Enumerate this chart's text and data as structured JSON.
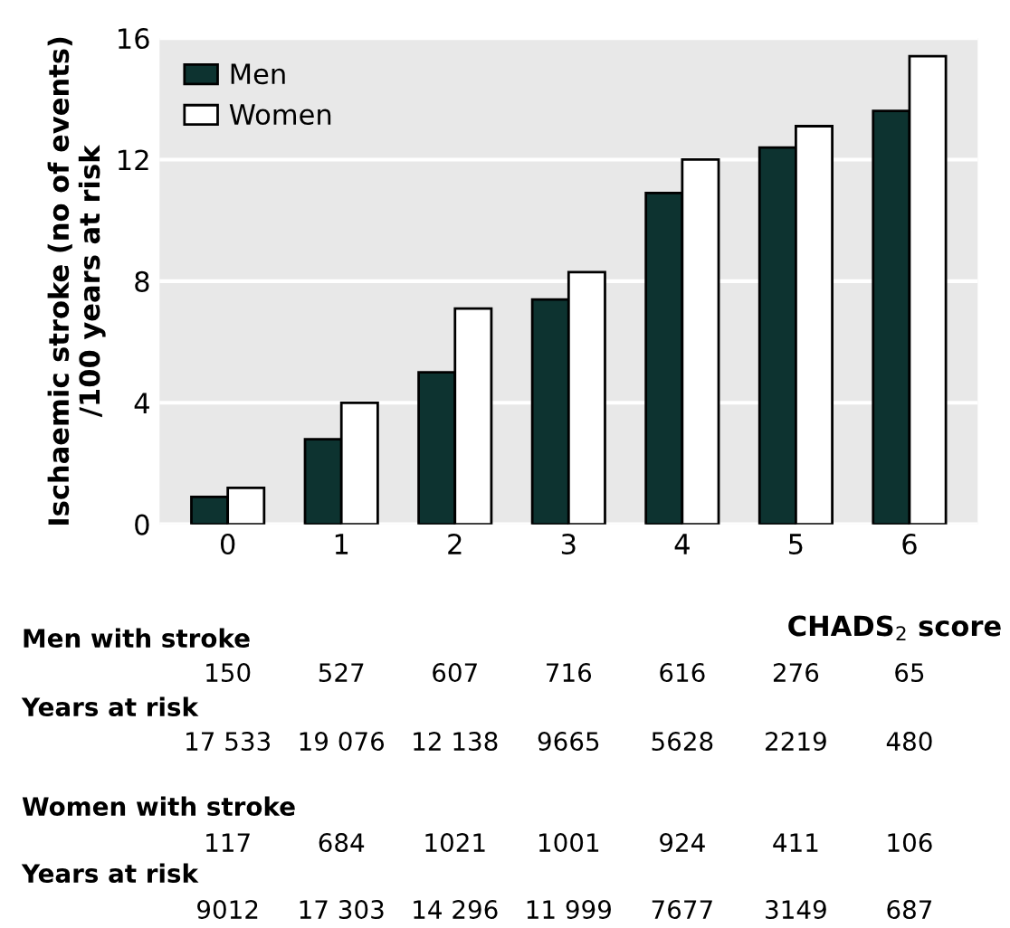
{
  "chart_data": {
    "type": "bar",
    "xlabel": "CHADS$_{2}$ score",
    "ylabel": "Ischaemic stroke (no of events)\n/100 years at risk",
    "categories": [
      "0",
      "1",
      "2",
      "3",
      "4",
      "5",
      "6"
    ],
    "series": [
      {
        "name": "Men",
        "color": "#0d3330",
        "values": [
          0.9,
          2.8,
          5.0,
          7.4,
          10.9,
          12.4,
          13.6
        ]
      },
      {
        "name": "Women",
        "color": "#ffffff",
        "values": [
          1.2,
          4.0,
          7.1,
          8.3,
          12.0,
          13.1,
          15.4
        ]
      }
    ],
    "ylim": [
      0,
      16
    ],
    "yticks": [
      0,
      4,
      8,
      12,
      16
    ],
    "grid": "y",
    "legend": "top left",
    "annotations": [
      "Men with stroke",
      "150",
      "527",
      "607",
      "716",
      "616",
      "276",
      "65",
      "Years at risk",
      "17 533",
      "19 076",
      "12 138",
      "9665",
      "5628",
      "2219",
      "480",
      "Women with stroke",
      "117",
      "684",
      "1021",
      "1001",
      "924",
      "411",
      "106",
      "Years at risk",
      "9012",
      "17 303",
      "14 296",
      "11 999",
      "7677",
      "3149",
      "687"
    ]
  }
}
